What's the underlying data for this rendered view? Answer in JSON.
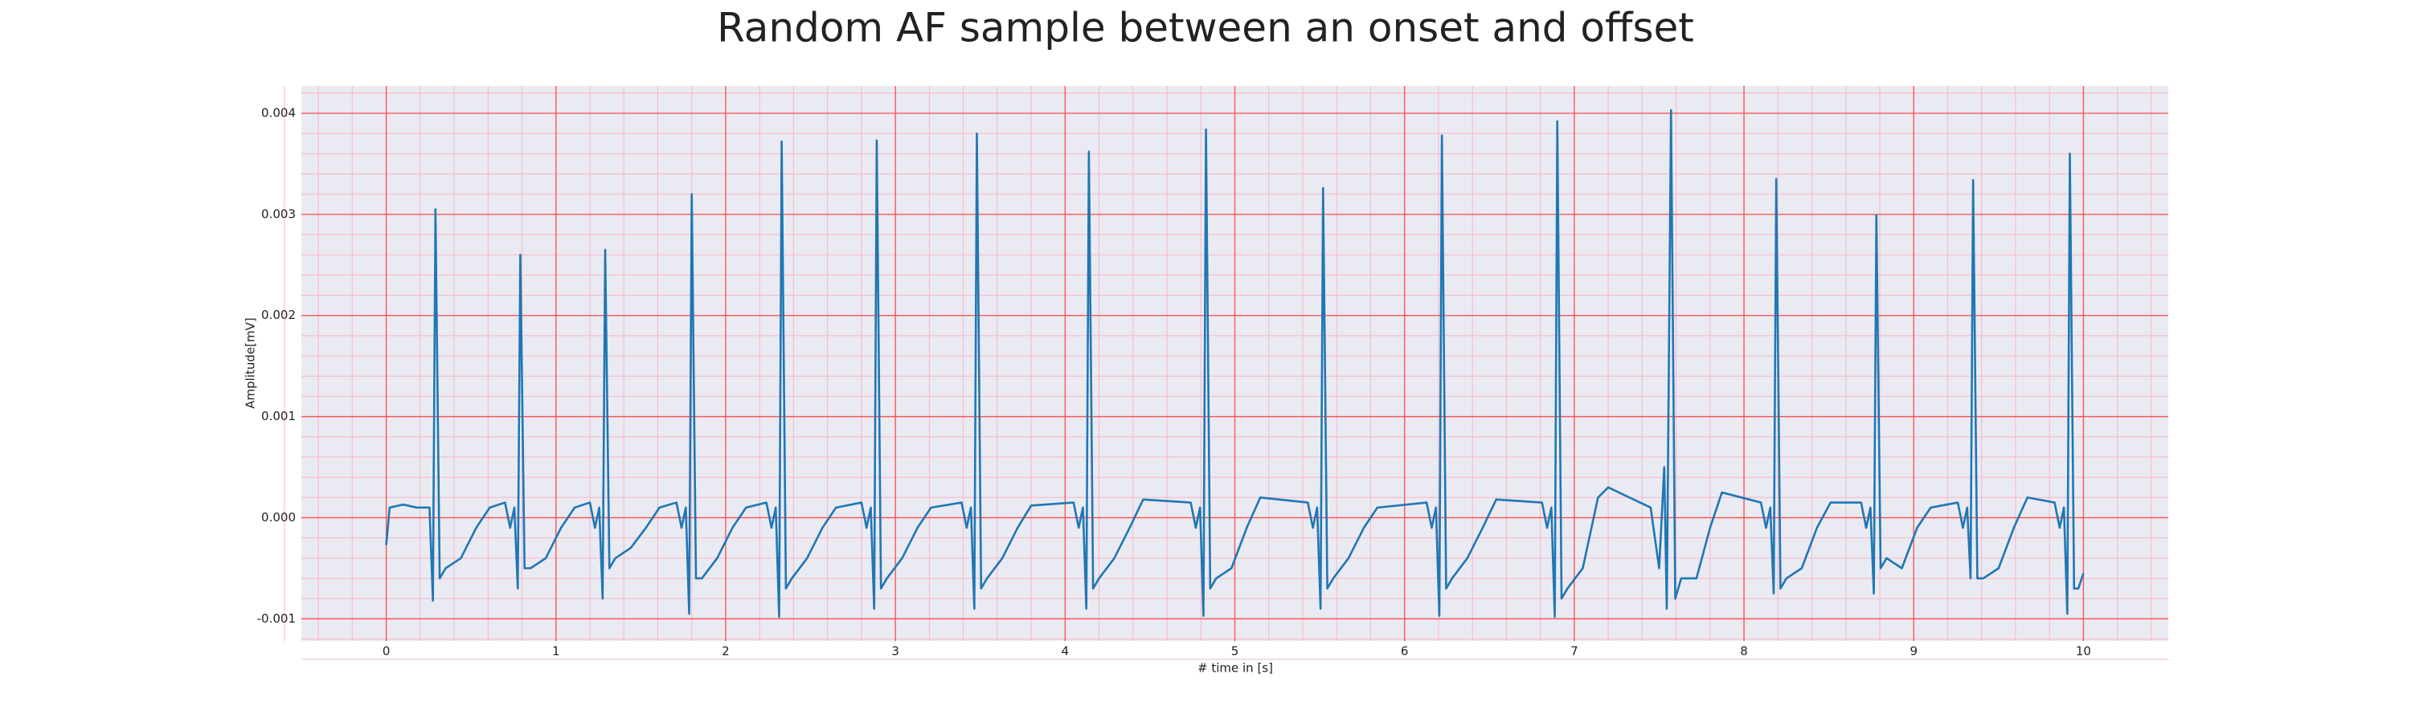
{
  "chart_data": {
    "type": "line",
    "title": "Random AF sample between an onset and offset",
    "x_label": "# time in [s]",
    "y_label": "Amplitude[mV]",
    "color": "#1f77b4",
    "grid": true,
    "minor_grid": true,
    "grid_color": "#ff4d4d",
    "background": "#eaeaf2",
    "xlim": [
      -0.5,
      10.5
    ],
    "ylim": [
      -0.00122,
      0.00427
    ],
    "xticks": [
      0,
      1,
      2,
      3,
      4,
      5,
      6,
      7,
      8,
      9,
      10
    ],
    "yticks": [
      -0.001,
      {
        "value": 0,
        "label": "0.000"
      },
      0.001,
      0.002,
      0.003,
      0.004
    ],
    "x": [
      0,
      0.02,
      0.1,
      0.18,
      0.255,
      0.275,
      0.29,
      0.315,
      0.35,
      0.44,
      0.53,
      0.61,
      0.7,
      0.73,
      0.755,
      0.775,
      0.79,
      0.815,
      0.85,
      0.94,
      1.03,
      1.11,
      1.2,
      1.23,
      1.255,
      1.275,
      1.29,
      1.315,
      1.35,
      1.44,
      1.53,
      1.61,
      1.71,
      1.74,
      1.765,
      1.785,
      1.8,
      1.825,
      1.86,
      1.95,
      2.04,
      2.12,
      2.24,
      2.27,
      2.295,
      2.315,
      2.33,
      2.355,
      2.39,
      2.48,
      2.57,
      2.65,
      2.8,
      2.83,
      2.855,
      2.875,
      2.89,
      2.915,
      2.95,
      3.04,
      3.13,
      3.21,
      3.39,
      3.42,
      3.445,
      3.465,
      3.48,
      3.505,
      3.54,
      3.63,
      3.72,
      3.8,
      4.05,
      4.08,
      4.105,
      4.125,
      4.14,
      4.165,
      4.2,
      4.29,
      4.38,
      4.46,
      4.74,
      4.77,
      4.795,
      4.815,
      4.83,
      4.855,
      4.89,
      4.98,
      5.07,
      5.15,
      5.43,
      5.46,
      5.485,
      5.505,
      5.52,
      5.545,
      5.58,
      5.67,
      5.76,
      5.84,
      6.13,
      6.16,
      6.185,
      6.205,
      6.22,
      6.245,
      6.28,
      6.37,
      6.46,
      6.54,
      6.81,
      6.84,
      6.865,
      6.885,
      6.9,
      6.925,
      6.96,
      7.05,
      7.14,
      7.2,
      7.45,
      7.5,
      7.53,
      7.545,
      7.57,
      7.595,
      7.63,
      7.72,
      7.8,
      7.87,
      8.1,
      8.13,
      8.155,
      8.175,
      8.19,
      8.215,
      8.25,
      8.34,
      8.43,
      8.51,
      8.69,
      8.72,
      8.745,
      8.765,
      8.78,
      8.805,
      8.84,
      8.93,
      9.02,
      9.1,
      9.26,
      9.29,
      9.315,
      9.335,
      9.35,
      9.375,
      9.41,
      9.5,
      9.59,
      9.67,
      9.83,
      9.86,
      9.885,
      9.905,
      9.92,
      9.945,
      9.97,
      10.0
    ],
    "values": [
      -0.00027,
      0.0001,
      0.00013,
      0.0001,
      0.0001,
      -0.00082,
      0.00305,
      -0.0006,
      -0.0005,
      -0.0004,
      -0.0001,
      0.0001,
      0.00015,
      -0.0001,
      0.0001,
      -0.0007,
      0.0026,
      -0.0005,
      -0.0005,
      -0.0004,
      -0.0001,
      0.0001,
      0.00015,
      -0.0001,
      0.0001,
      -0.0008,
      0.00265,
      -0.0005,
      -0.0004,
      -0.0003,
      -0.0001,
      0.0001,
      0.00015,
      -0.0001,
      0.0001,
      -0.00095,
      0.0032,
      -0.0006,
      -0.0006,
      -0.0004,
      -0.0001,
      0.0001,
      0.00015,
      -0.0001,
      0.0001,
      -0.00098,
      0.00372,
      -0.0007,
      -0.0006,
      -0.0004,
      -0.0001,
      0.0001,
      0.00015,
      -0.0001,
      0.0001,
      -0.0009,
      0.00373,
      -0.0007,
      -0.0006,
      -0.0004,
      -0.0001,
      0.0001,
      0.00015,
      -0.0001,
      0.0001,
      -0.0009,
      0.0038,
      -0.0007,
      -0.0006,
      -0.0004,
      -0.0001,
      0.00012,
      0.00015,
      -0.0001,
      0.0001,
      -0.0009,
      0.00362,
      -0.0007,
      -0.0006,
      -0.0004,
      -0.0001,
      0.00018,
      0.00015,
      -0.0001,
      0.0001,
      -0.00097,
      0.00384,
      -0.0007,
      -0.0006,
      -0.0005,
      -0.0001,
      0.0002,
      0.00015,
      -0.0001,
      0.0001,
      -0.0009,
      0.00326,
      -0.0007,
      -0.0006,
      -0.0004,
      -0.0001,
      0.0001,
      0.00015,
      -0.0001,
      0.0001,
      -0.00097,
      0.00378,
      -0.0007,
      -0.0006,
      -0.0004,
      -0.0001,
      0.00018,
      0.00015,
      -0.0001,
      0.0001,
      -0.00098,
      0.00392,
      -0.0008,
      -0.0007,
      -0.0005,
      0.0002,
      0.0003,
      0.0001,
      -0.0005,
      0.0005,
      -0.0009,
      0.00403,
      -0.0008,
      -0.0006,
      -0.0006,
      -0.0001,
      0.00025,
      0.00015,
      -0.0001,
      0.0001,
      -0.00075,
      0.00335,
      -0.0007,
      -0.0006,
      -0.0005,
      -0.0001,
      0.00015,
      0.00015,
      -0.0001,
      0.0001,
      -0.00075,
      0.00299,
      -0.0005,
      -0.0004,
      -0.0005,
      -0.0001,
      0.0001,
      0.00015,
      -0.0001,
      0.0001,
      -0.0006,
      0.00334,
      -0.0006,
      -0.0006,
      -0.0005,
      -0.0001,
      0.0002,
      0.00015,
      -0.0001,
      0.0001,
      -0.00095,
      0.0036,
      -0.0007,
      -0.0007,
      -0.00055
    ]
  }
}
